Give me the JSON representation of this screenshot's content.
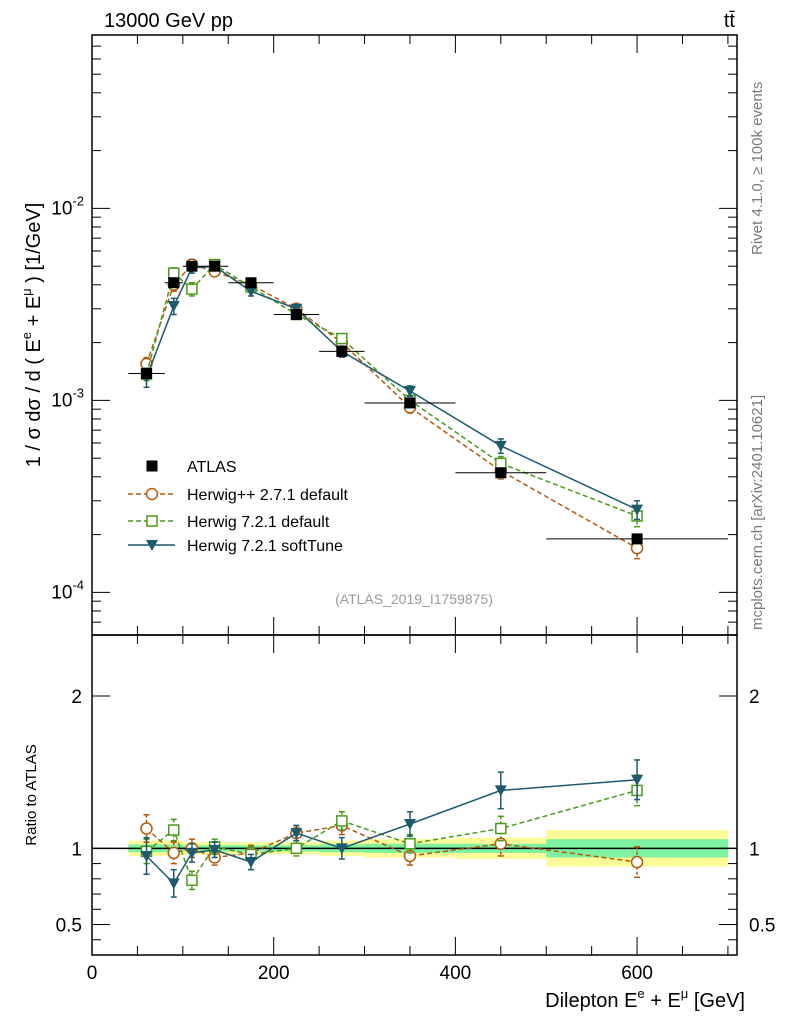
{
  "header": {
    "left_title": "13000 GeV pp",
    "right_title": "tt̄"
  },
  "side_text": {
    "rivet": "Rivet 4.1.0, ≥ 100k events",
    "mcplots": "mcplots.cern.ch [arXiv:2401.10621]"
  },
  "reference_label": "(ATLAS_2019_I1759875)",
  "colors": {
    "atlas": "#000000",
    "herwigpp": "#b35a0e",
    "herwig721": "#4a9a1a",
    "softtune": "#1d5a6e",
    "band_inner": "#7ef2a0",
    "band_outer": "#fdfa9a"
  },
  "chart_data": [
    {
      "type": "scatter",
      "panel": "main",
      "title": "13000 GeV pp",
      "xlabel": "Dilepton E^e + E^μ [GeV]",
      "ylabel": "1 / σ dσ / d ( E^e + E^μ ) [1/GeV]",
      "yscale": "log",
      "xlim": [
        0,
        710
      ],
      "ylim": [
        6e-05,
        0.08
      ],
      "ytick_labels": [
        "10^-4",
        "10^-3",
        "10^-2"
      ],
      "legend_position": "lower-left",
      "x": [
        60,
        90,
        110,
        135,
        175,
        225,
        275,
        350,
        450,
        600
      ],
      "x_bins": [
        [
          40,
          80
        ],
        [
          80,
          100
        ],
        [
          100,
          120
        ],
        [
          120,
          150
        ],
        [
          150,
          200
        ],
        [
          200,
          250
        ],
        [
          250,
          300
        ],
        [
          300,
          400
        ],
        [
          400,
          500
        ],
        [
          500,
          700
        ]
      ],
      "series": [
        {
          "name": "ATLAS",
          "key": "atlas",
          "marker": "filled-square",
          "values": [
            0.00138,
            0.0041,
            0.005,
            0.005,
            0.0041,
            0.0028,
            0.0018,
            0.00097,
            0.00042,
            0.00019
          ]
        },
        {
          "name": "Herwig++ 2.7.1 default",
          "key": "herwigpp",
          "marker": "open-circle",
          "line": "dashed",
          "values": [
            0.00155,
            0.004,
            0.0051,
            0.0047,
            0.004,
            0.003,
            0.002,
            0.00092,
            0.00043,
            0.00017
          ],
          "errors": [
            0.00012,
            0.0003,
            0.0003,
            0.0002,
            0.0002,
            0.00015,
            0.0001,
            6e-05,
            4e-05,
            2e-05
          ]
        },
        {
          "name": "Herwig 7.2.1 default",
          "key": "herwig721",
          "marker": "open-square",
          "line": "dashed",
          "values": [
            0.00137,
            0.0046,
            0.0038,
            0.0051,
            0.0039,
            0.0028,
            0.0021,
            0.001,
            0.00047,
            0.00025
          ],
          "errors": [
            0.0001,
            0.0003,
            0.0003,
            0.0002,
            0.0002,
            0.00015,
            0.00012,
            6e-05,
            4e-05,
            3e-05
          ]
        },
        {
          "name": "Herwig 7.2.1 softTune",
          "key": "softtune",
          "marker": "filled-triangle-down",
          "line": "solid",
          "values": [
            0.00132,
            0.0031,
            0.0049,
            0.005,
            0.0037,
            0.003,
            0.0018,
            0.00112,
            0.00058,
            0.00027
          ],
          "errors": [
            0.00015,
            0.0003,
            0.0003,
            0.0002,
            0.0002,
            0.00015,
            0.00012,
            7e-05,
            5e-05,
            3e-05
          ]
        }
      ]
    },
    {
      "type": "line",
      "panel": "ratio",
      "xlabel": "Dilepton E^e + E^μ [GeV]",
      "ylabel": "Ratio to ATLAS",
      "xlim": [
        0,
        710
      ],
      "ylim": [
        0.3,
        2.4
      ],
      "ytick_labels": [
        "0.5",
        "1",
        "2"
      ],
      "xtick_labels": [
        "0",
        "200",
        "400",
        "600"
      ],
      "x": [
        60,
        90,
        110,
        135,
        175,
        225,
        275,
        350,
        450,
        600
      ],
      "band_inner": [
        0.025,
        0.025,
        0.02,
        0.02,
        0.02,
        0.02,
        0.025,
        0.03,
        0.03,
        0.06
      ],
      "band_outer": [
        0.05,
        0.05,
        0.04,
        0.04,
        0.04,
        0.04,
        0.05,
        0.06,
        0.07,
        0.12
      ],
      "series": [
        {
          "name": "Herwig++ 2.7.1 default",
          "key": "herwigpp",
          "values": [
            1.13,
            0.97,
            1.0,
            0.94,
            0.97,
            1.1,
            1.15,
            0.95,
            1.03,
            0.91
          ],
          "errors": [
            0.09,
            0.07,
            0.06,
            0.05,
            0.05,
            0.05,
            0.06,
            0.06,
            0.08,
            0.1
          ]
        },
        {
          "name": "Herwig 7.2.1 default",
          "key": "herwig721",
          "values": [
            0.98,
            1.12,
            0.79,
            1.01,
            0.96,
            1.0,
            1.18,
            1.03,
            1.13,
            1.38
          ],
          "errors": [
            0.08,
            0.07,
            0.06,
            0.05,
            0.05,
            0.05,
            0.06,
            0.06,
            0.08,
            0.1
          ]
        },
        {
          "name": "Herwig 7.2.1 softTune",
          "key": "softtune",
          "values": [
            0.95,
            0.77,
            0.97,
            0.99,
            0.91,
            1.1,
            1.0,
            1.16,
            1.38,
            1.45
          ],
          "errors": [
            0.12,
            0.09,
            0.06,
            0.05,
            0.05,
            0.05,
            0.07,
            0.08,
            0.12,
            0.13
          ]
        }
      ]
    }
  ]
}
